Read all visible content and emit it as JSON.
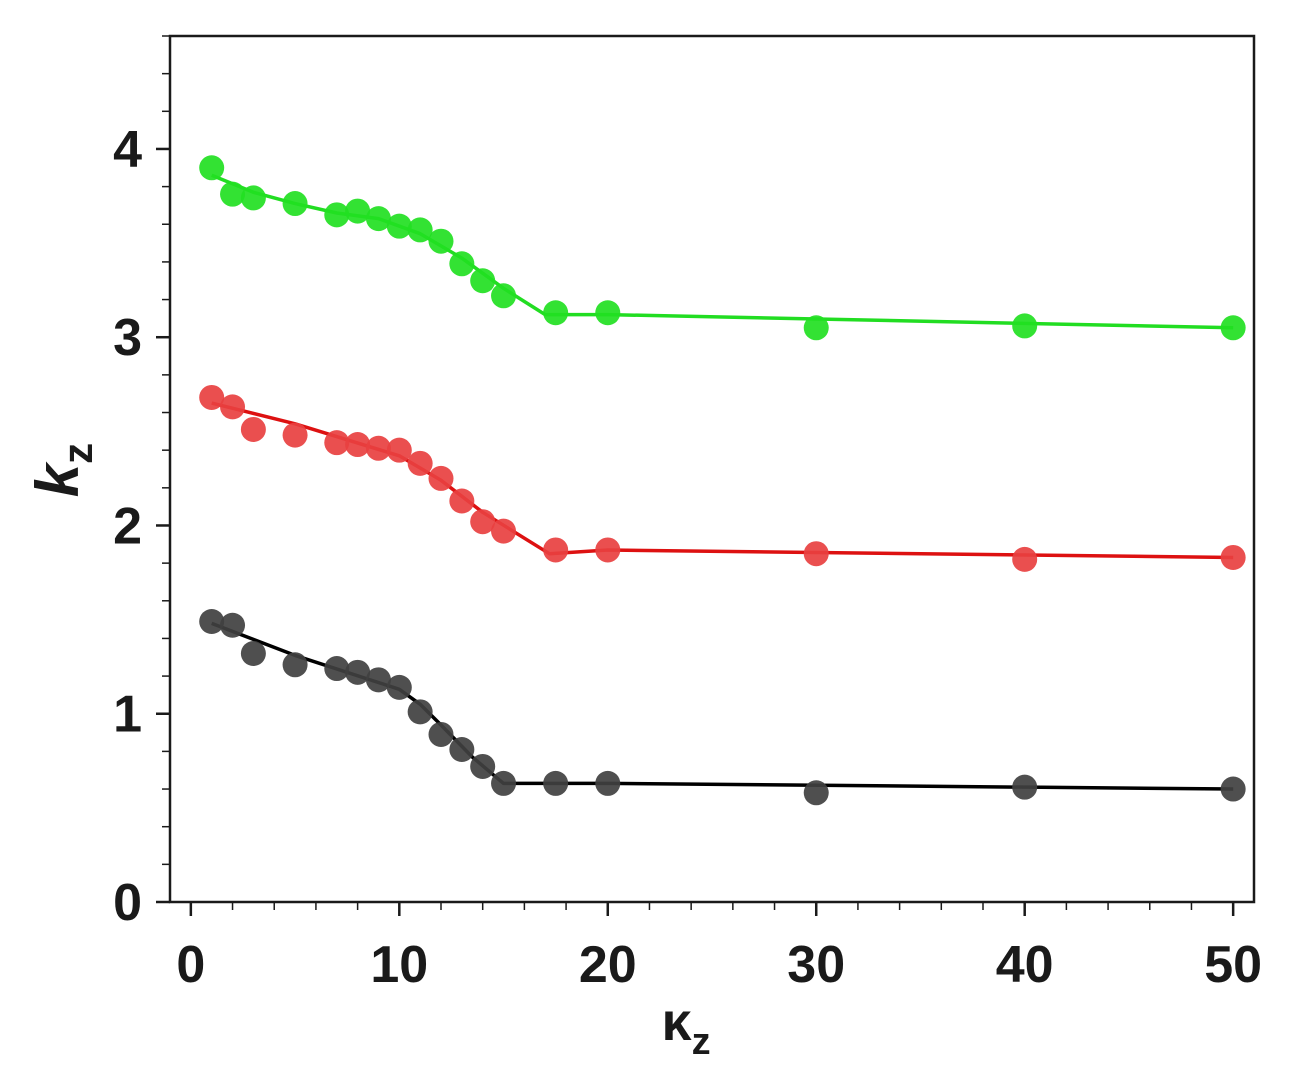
{
  "chart_data": {
    "type": "line",
    "xlabel": "κ",
    "xlabel_sub": "z",
    "ylabel": "k",
    "ylabel_sub": "z",
    "xlim": [
      -1,
      51
    ],
    "ylim": [
      0,
      4.6
    ],
    "x_ticks": [
      "0",
      "10",
      "20",
      "30",
      "40",
      "50"
    ],
    "y_ticks": [
      "0",
      "1",
      "2",
      "3",
      "4"
    ],
    "grid": false,
    "legend": "none",
    "series": [
      {
        "color": "#22dd22",
        "marker_color": "#22e022",
        "points": [
          [
            1,
            3.9
          ],
          [
            2,
            3.76
          ],
          [
            3,
            3.74
          ],
          [
            5,
            3.71
          ],
          [
            7,
            3.65
          ],
          [
            8,
            3.67
          ],
          [
            9,
            3.63
          ],
          [
            10,
            3.59
          ],
          [
            11,
            3.57
          ],
          [
            12,
            3.51
          ],
          [
            13,
            3.39
          ],
          [
            14,
            3.3
          ],
          [
            15,
            3.22
          ],
          [
            17.5,
            3.13
          ],
          [
            20,
            3.13
          ],
          [
            30,
            3.05
          ],
          [
            40,
            3.06
          ],
          [
            50,
            3.05
          ]
        ],
        "fit": [
          [
            1,
            3.86
          ],
          [
            3,
            3.77
          ],
          [
            5,
            3.71
          ],
          [
            7,
            3.66
          ],
          [
            9,
            3.63
          ],
          [
            11,
            3.55
          ],
          [
            13,
            3.42
          ],
          [
            15,
            3.26
          ],
          [
            17,
            3.12
          ],
          [
            20,
            3.12
          ],
          [
            50,
            3.05
          ]
        ]
      },
      {
        "color": "#dd1111",
        "marker_color": "#e84040",
        "points": [
          [
            1,
            2.68
          ],
          [
            2,
            2.63
          ],
          [
            3,
            2.51
          ],
          [
            5,
            2.48
          ],
          [
            7,
            2.44
          ],
          [
            8,
            2.43
          ],
          [
            9,
            2.41
          ],
          [
            10,
            2.4
          ],
          [
            11,
            2.33
          ],
          [
            12,
            2.25
          ],
          [
            13,
            2.13
          ],
          [
            14,
            2.02
          ],
          [
            15,
            1.97
          ],
          [
            17.5,
            1.87
          ],
          [
            20,
            1.87
          ],
          [
            30,
            1.85
          ],
          [
            40,
            1.82
          ],
          [
            50,
            1.83
          ]
        ],
        "fit": [
          [
            1,
            2.65
          ],
          [
            5,
            2.54
          ],
          [
            10,
            2.37
          ],
          [
            12,
            2.24
          ],
          [
            14,
            2.07
          ],
          [
            17.2,
            1.85
          ],
          [
            20,
            1.87
          ],
          [
            50,
            1.83
          ]
        ]
      },
      {
        "color": "#000000",
        "marker_color": "#404040",
        "points": [
          [
            1,
            1.49
          ],
          [
            2,
            1.47
          ],
          [
            3,
            1.32
          ],
          [
            5,
            1.26
          ],
          [
            7,
            1.24
          ],
          [
            8,
            1.22
          ],
          [
            9,
            1.18
          ],
          [
            10,
            1.14
          ],
          [
            11,
            1.01
          ],
          [
            12,
            0.89
          ],
          [
            13,
            0.81
          ],
          [
            14,
            0.72
          ],
          [
            15,
            0.63
          ],
          [
            17.5,
            0.63
          ],
          [
            20,
            0.63
          ],
          [
            30,
            0.58
          ],
          [
            40,
            0.61
          ],
          [
            50,
            0.6
          ]
        ],
        "fit": [
          [
            1,
            1.48
          ],
          [
            5,
            1.31
          ],
          [
            10,
            1.13
          ],
          [
            11,
            1.05
          ],
          [
            12,
            0.94
          ],
          [
            13.5,
            0.77
          ],
          [
            15,
            0.63
          ],
          [
            20,
            0.63
          ],
          [
            50,
            0.6
          ]
        ]
      }
    ]
  }
}
